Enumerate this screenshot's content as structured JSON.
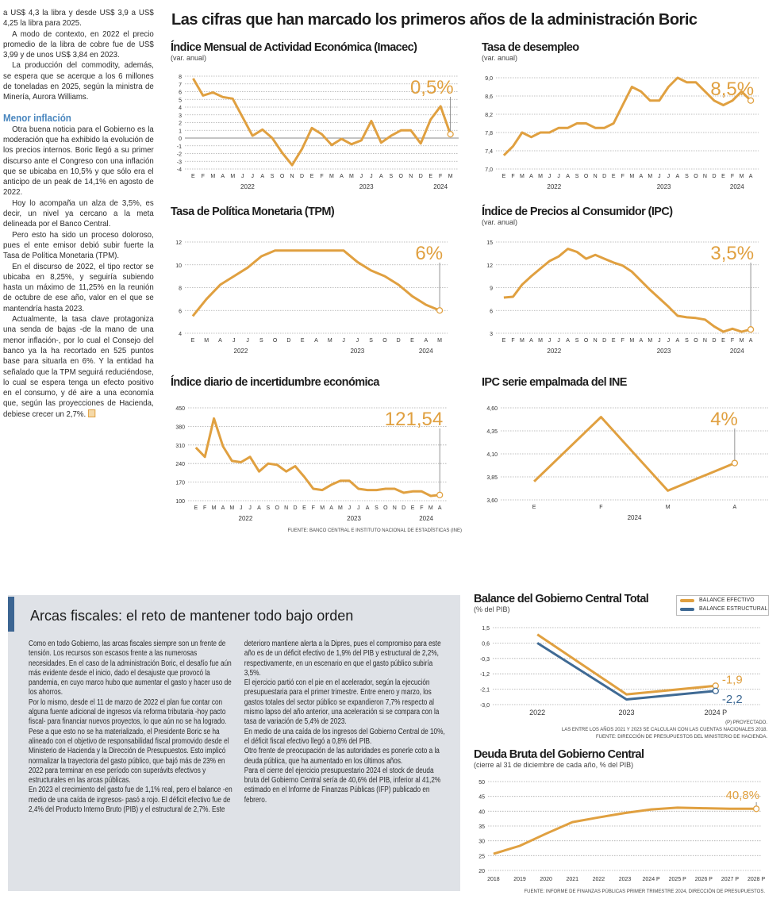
{
  "left_column": {
    "paragraphs_top": [
      "a US$ 4,3 la libra y desde US$ 3,9 a US$ 4,25 la libra para 2025.",
      "A modo de contexto, en 2022 el precio promedio de la libra de cobre fue de US$ 3,99 y de unos US$ 3,84 en 2023.",
      "La producción del commodity, además, se espera que se acerque a los 6 millones de toneladas en 2025, según la ministra de Minería, Aurora Williams."
    ],
    "subheading": "Menor inflación",
    "paragraphs_bottom": [
      "Otra buena noticia para el Gobierno es la moderación que ha exhibido la evolución de los precios internos. Boric llegó a su primer discurso ante el Congreso con una inflación que se ubicaba en 10,5% y que sólo era el anticipo de un peak de 14,1% en agosto de 2022.",
      "Hoy lo acompaña un alza de 3,5%, es decir, un nivel ya cercano a la meta delineada por el Banco Central.",
      "Pero esto ha sido un proceso doloroso, pues el ente emisor debió subir fuerte la Tasa de Política Monetaria (TPM).",
      "En el discurso de 2022, el tipo rector se ubicaba en 8,25%, y seguiría subiendo hasta un máximo de 11,25% en la reunión de octubre de ese año, valor en el que se mantendría hasta 2023.",
      "Actualmente, la tasa clave protagoniza una senda de bajas -de la mano de una menor inflación-, por lo cual el Consejo del banco ya la ha recortado en 525 puntos base para situarla en 6%. Y la entidad ha señalado que la TPM seguirá reduciéndose, lo cual se espera tenga un efecto positivo en el consumo, y dé aire a una economía que, según las proyecciones de Hacienda, debiese crecer un 2,7%."
    ],
    "end_mark_color": "#e0a040"
  },
  "main_title": "Las cifras que han marcado los primeros años de la administración Boric",
  "fiscal": {
    "title": "Arcas fiscales: el reto de mantener todo bajo orden",
    "paragraphs": [
      "Como en todo Gobierno, las arcas fiscales siempre son un frente de tensión. Los recursos son escasos frente a las numerosas necesidades. En el caso de la administración Boric, el desafío fue aún más evidente desde el inicio, dado el desajuste que provocó la pandemia, en cuyo marco hubo que aumentar el gasto y hacer uso de los ahorros.",
      "Por lo mismo, desde el 11 de marzo de 2022 el plan fue contar con alguna fuente adicional de ingresos vía reforma tributaria -hoy pacto fiscal- para financiar nuevos proyectos, lo que aún no se ha logrado.",
      "Pese a que esto no se ha materializado, el Presidente Boric se ha alineado con el objetivo de responsabilidad fiscal promovido desde el Ministerio de Hacienda y la Dirección de Presupuestos. Esto implicó normalizar la trayectoria del gasto público, que bajó más de 23% en 2022 para terminar en ese período con superávits efectivos y estructurales en las arcas públicas.",
      "En 2023 el crecimiento del gasto fue de 1,1% real, pero el balance -en medio de una caída de ingresos- pasó a rojo. El déficit efectivo fue de 2,4% del Producto Interno Bruto (PIB) y el estructural de 2,7%. Este deterioro mantiene alerta a la Dipres, pues el compromiso para este año es de un déficit efectivo de 1,9% del PIB y estructural de 2,2%, respectivamente, en un escenario en que el gasto público subiría 3,5%.",
      "El ejercicio partió con el pie en el acelerador, según la ejecución presupuestaria para el primer trimestre. Entre enero y marzo, los gastos totales del sector público se expandieron 7,7% respecto al mismo lapso del año anterior, una aceleración si se compara con la tasa de variación de 5,4% de 2023.",
      "En medio de una caída de los ingresos del Gobierno Central de 10%, el déficit fiscal efectivo llegó a 0,8% del PIB.",
      "Otro frente de preocupación de las autoridades es ponerle coto a la deuda pública, que ha aumentado en los últimos años.",
      "Para el cierre del ejercicio presupuestario 2024 el stock de deuda bruta del Gobierno Central sería de 40,6% del PIB, inferior al 41,2% estimado en el Informe de Finanzas Públicas (IFP) publicado en febrero."
    ],
    "accent_color": "#3c6592",
    "box_color": "#dfe2e7"
  },
  "colors": {
    "orange": "#e0a040",
    "blue": "#3f6a94"
  },
  "chart_data": [
    {
      "id": "imacec",
      "type": "line",
      "title": "Índice Mensual de Actividad Económica (Imacec)",
      "subtitle": "(var. anual)",
      "x_mode": "points",
      "categories": [
        "E",
        "F",
        "M",
        "A",
        "M",
        "J",
        "J",
        "A",
        "S",
        "O",
        "N",
        "D",
        "E",
        "F",
        "M",
        "A",
        "M",
        "J",
        "J",
        "A",
        "S",
        "O",
        "N",
        "D",
        "E",
        "F",
        "M"
      ],
      "year_labels": [
        {
          "label": "2022",
          "at": 5.5
        },
        {
          "label": "2023",
          "at": 17.5
        },
        {
          "label": "2024",
          "at": 25
        }
      ],
      "ylim": [
        -4,
        8
      ],
      "yticks": [
        "-4",
        "-3",
        "-2",
        "-1",
        "0",
        "1",
        "2",
        "3",
        "4",
        "5",
        "6",
        "7",
        "8"
      ],
      "ytick_values": [
        -4,
        -3,
        -2,
        -1,
        0,
        1,
        2,
        3,
        4,
        5,
        6,
        7,
        8
      ],
      "zero_line": true,
      "grid": true,
      "series": [
        {
          "values": [
            7.7,
            5.5,
            5.9,
            5.3,
            5.1,
            2.7,
            0.3,
            1.1,
            0.0,
            -1.9,
            -3.5,
            -1.4,
            1.3,
            0.5,
            -0.9,
            -0.1,
            -0.8,
            -0.3,
            2.2,
            -0.6,
            0.3,
            1.0,
            1.0,
            -0.7,
            2.4,
            4.1,
            0.5
          ],
          "color": "#e0a040"
        }
      ],
      "highlight": "0,5%"
    },
    {
      "id": "desempleo",
      "type": "line",
      "title": "Tasa de desempleo",
      "subtitle": "(var. anual)",
      "x_mode": "points",
      "categories": [
        "E",
        "F",
        "M",
        "A",
        "M",
        "J",
        "J",
        "A",
        "S",
        "O",
        "N",
        "D",
        "E",
        "F",
        "M",
        "A",
        "M",
        "J",
        "J",
        "A",
        "S",
        "O",
        "N",
        "D",
        "E",
        "F",
        "M",
        "A"
      ],
      "year_labels": [
        {
          "label": "2022",
          "at": 5.5
        },
        {
          "label": "2023",
          "at": 17.5
        },
        {
          "label": "2024",
          "at": 25.5
        }
      ],
      "ylim": [
        7.0,
        9.0
      ],
      "yticks": [
        "7,0",
        "7,4",
        "7,8",
        "8,2",
        "8,6",
        "9,0"
      ],
      "ytick_values": [
        7.0,
        7.4,
        7.8,
        8.2,
        8.6,
        9.0
      ],
      "grid": true,
      "series": [
        {
          "values": [
            7.3,
            7.5,
            7.8,
            7.7,
            7.8,
            7.8,
            7.9,
            7.9,
            8.0,
            8.0,
            7.9,
            7.9,
            8.0,
            8.4,
            8.8,
            8.7,
            8.5,
            8.5,
            8.8,
            9.0,
            8.9,
            8.9,
            8.7,
            8.5,
            8.4,
            8.5,
            8.7,
            8.5
          ],
          "color": "#e0a040"
        }
      ],
      "highlight": "8,5%"
    },
    {
      "id": "tpm",
      "type": "line",
      "title": "Tasa de Política Monetaria (TPM)",
      "subtitle": "",
      "x_mode": "points",
      "categories": [
        "E",
        "M",
        "A",
        "J",
        "J",
        "S",
        "O",
        "D",
        "E",
        "A",
        "M",
        "J",
        "J",
        "S",
        "O",
        "D",
        "E",
        "A",
        "M"
      ],
      "year_labels": [
        {
          "label": "2022",
          "at": 3.5
        },
        {
          "label": "2023",
          "at": 12
        },
        {
          "label": "2024",
          "at": 17
        }
      ],
      "ylim": [
        4,
        12
      ],
      "yticks": [
        "4",
        "6",
        "8",
        "10",
        "12"
      ],
      "ytick_values": [
        4,
        6,
        8,
        10,
        12
      ],
      "grid": true,
      "series": [
        {
          "values": [
            5.5,
            7.0,
            8.25,
            9.0,
            9.75,
            10.75,
            11.25,
            11.25,
            11.25,
            11.25,
            11.25,
            11.25,
            10.25,
            9.5,
            9.0,
            8.25,
            7.25,
            6.5,
            6.0
          ],
          "color": "#e0a040"
        }
      ],
      "highlight": "6%"
    },
    {
      "id": "ipc",
      "type": "line",
      "title": "Índice de Precios al Consumidor (IPC)",
      "subtitle": "(var. anual)",
      "x_mode": "points",
      "categories": [
        "E",
        "F",
        "M",
        "A",
        "M",
        "J",
        "J",
        "A",
        "S",
        "O",
        "N",
        "D",
        "E",
        "F",
        "M",
        "A",
        "M",
        "J",
        "J",
        "A",
        "S",
        "O",
        "N",
        "D",
        "E",
        "F",
        "M",
        "A"
      ],
      "year_labels": [
        {
          "label": "2022",
          "at": 5.5
        },
        {
          "label": "2023",
          "at": 17.5
        },
        {
          "label": "2024",
          "at": 25.5
        }
      ],
      "ylim": [
        3,
        15
      ],
      "yticks": [
        "3",
        "6",
        "9",
        "12",
        "15"
      ],
      "ytick_values": [
        3,
        6,
        9,
        12,
        15
      ],
      "grid": true,
      "series": [
        {
          "values": [
            7.7,
            7.8,
            9.4,
            10.5,
            11.5,
            12.5,
            13.1,
            14.1,
            13.7,
            12.8,
            13.3,
            12.8,
            12.3,
            11.9,
            11.1,
            9.9,
            8.7,
            7.6,
            6.5,
            5.3,
            5.1,
            5.0,
            4.8,
            3.9,
            3.2,
            3.6,
            3.2,
            3.5
          ],
          "color": "#e0a040"
        }
      ],
      "highlight": "3,5%"
    },
    {
      "id": "incertidumbre",
      "type": "line",
      "title": "Índice diario de incertidumbre económica",
      "subtitle": "",
      "x_mode": "points",
      "categories": [
        "E",
        "F",
        "M",
        "A",
        "M",
        "J",
        "J",
        "A",
        "S",
        "O",
        "N",
        "D",
        "E",
        "F",
        "M",
        "A",
        "M",
        "J",
        "J",
        "A",
        "S",
        "O",
        "N",
        "D",
        "E",
        "F",
        "M",
        "A"
      ],
      "year_labels": [
        {
          "label": "2022",
          "at": 5.5
        },
        {
          "label": "2023",
          "at": 17.5
        },
        {
          "label": "2024",
          "at": 25.5
        }
      ],
      "ylim": [
        100,
        450
      ],
      "yticks": [
        "100",
        "170",
        "240",
        "310",
        "380",
        "450"
      ],
      "ytick_values": [
        100,
        170,
        240,
        310,
        380,
        450
      ],
      "grid": true,
      "series": [
        {
          "values": [
            300,
            265,
            410,
            305,
            250,
            245,
            265,
            210,
            240,
            235,
            210,
            230,
            190,
            145,
            140,
            160,
            175,
            175,
            145,
            140,
            140,
            145,
            145,
            130,
            135,
            135,
            118,
            121.54
          ],
          "color": "#e0a040"
        }
      ],
      "highlight": "121,54",
      "source": "FUENTE: BANCO CENTRAL E INSTITUTO NACIONAL DE ESTADÍSTICAS (INE)"
    },
    {
      "id": "ipc_empalmada",
      "type": "line",
      "title": "IPC serie empalmada del INE",
      "subtitle": "",
      "x_mode": "band",
      "categories": [
        "E",
        "F",
        "M",
        "A"
      ],
      "year_labels": [
        {
          "label": "2024",
          "at": 1.5
        }
      ],
      "ylim": [
        3.6,
        4.6
      ],
      "yticks": [
        "3,60",
        "3,85",
        "4,10",
        "4,35",
        "4,60"
      ],
      "ytick_values": [
        3.6,
        3.85,
        4.1,
        4.35,
        4.6
      ],
      "grid": true,
      "series": [
        {
          "values": [
            3.8,
            4.5,
            3.7,
            4.0
          ],
          "color": "#e0a040"
        }
      ],
      "highlight": "4%"
    },
    {
      "id": "balance",
      "type": "line",
      "title": "Balance del Gobierno Central Total",
      "subtitle": "(% del PIB)",
      "x_mode": "band",
      "categories": [
        "2022",
        "2023",
        "2024 P"
      ],
      "year_labels": [],
      "ylim": [
        -3.0,
        1.5
      ],
      "yticks": [
        "-3,0",
        "-2,1",
        "-1,2",
        "-0,3",
        "0,6",
        "1,5"
      ],
      "ytick_values": [
        -3.0,
        -2.1,
        -1.2,
        -0.3,
        0.6,
        1.5
      ],
      "grid": true,
      "legend_position": "top-right",
      "series": [
        {
          "name": "BALANCE EFECTIVO",
          "values": [
            1.1,
            -2.4,
            -1.9
          ],
          "color": "#e0a040",
          "end_label": "-1,9"
        },
        {
          "name": "BALANCE ESTRUCTURAL",
          "values": [
            0.6,
            -2.7,
            -2.2
          ],
          "color": "#3f6a94",
          "end_label": "-2,2"
        }
      ],
      "notes": [
        "(P) PROYECTADO.",
        "LAS ENTRE LOS AÑOS 2021 Y 2023 SE CALCULAN  CON LAS CUENTAS NACIONALES 2018.",
        "FUENTE: DIRECCIÓN DE PRESUPUESTOS DEL MINISTERIO DE HACIENDA."
      ]
    },
    {
      "id": "deuda",
      "type": "line",
      "title": "Deuda Bruta del Gobierno Central",
      "subtitle": "(cierre al 31 de diciembre de cada año, % del PIB)",
      "x_mode": "points",
      "categories": [
        "2018",
        "2019",
        "2020",
        "2021",
        "2022",
        "2023",
        "2024 P",
        "2025 P",
        "2026 P",
        "2027 P",
        "2028 P"
      ],
      "year_labels": [],
      "ylim": [
        20,
        50
      ],
      "yticks": [
        "20",
        "25",
        "30",
        "35",
        "40",
        "45",
        "50"
      ],
      "ytick_values": [
        20,
        25,
        30,
        35,
        40,
        45,
        50
      ],
      "grid": true,
      "series": [
        {
          "values": [
            25.6,
            28.3,
            32.4,
            36.3,
            37.9,
            39.4,
            40.6,
            41.2,
            41.0,
            40.8,
            40.8
          ],
          "color": "#e0a040"
        }
      ],
      "highlight": "40,8%",
      "source": "FUENTE: INFORME DE FINANZAS PÚBLICAS PRIMER TRIMESTRE 2024, DIRECCIÓN DE PRESUPUESTOS."
    }
  ]
}
